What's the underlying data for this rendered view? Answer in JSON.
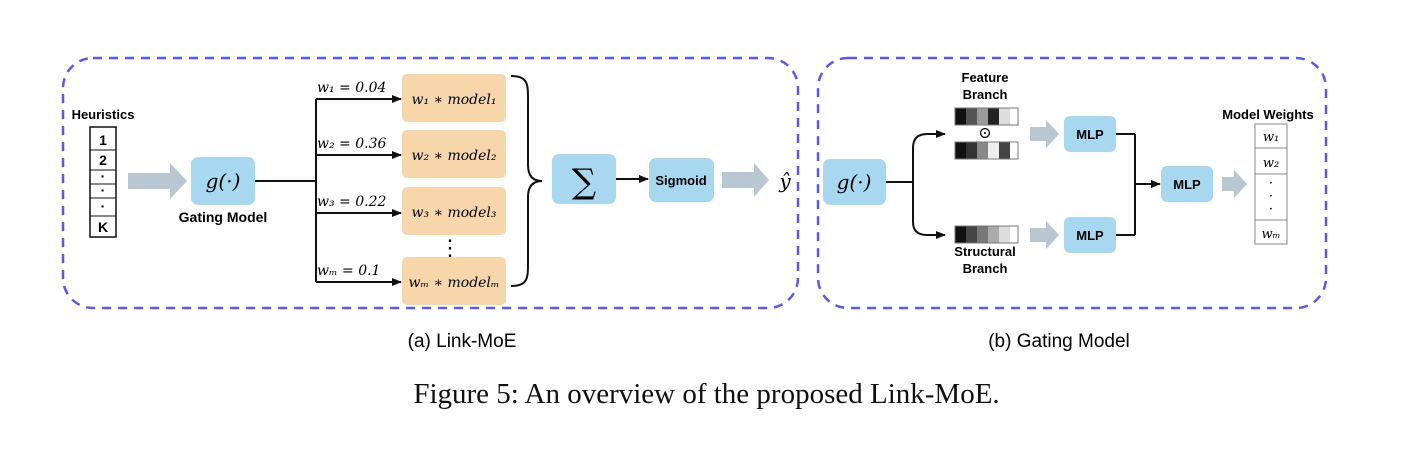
{
  "panel_a": {
    "caption": "(a) Link-MoE",
    "heuristics_title": "Heuristics",
    "heuristics_items": [
      "1",
      "2",
      "·",
      "·",
      "·",
      "K"
    ],
    "gate_node": "g(·)",
    "gate_label": "Gating Model",
    "experts": [
      {
        "weight_label": "w₁ = 0.04",
        "box_label": "w₁ ∗ model₁"
      },
      {
        "weight_label": "w₂ = 0.36",
        "box_label": "w₂ ∗ model₂"
      },
      {
        "weight_label": "w₃ = 0.22",
        "box_label": "w₃ ∗ model₃"
      },
      {
        "weight_label": "wₘ = 0.1",
        "box_label": "wₘ ∗ modelₘ"
      }
    ],
    "vdots": "⋮",
    "sum_symbol": "∑",
    "sigmoid_label": "Sigmoid",
    "output_label": "ŷ"
  },
  "panel_b": {
    "caption": "(b) Gating Model",
    "gate_node": "g(·)",
    "feature_branch_line1": "Feature",
    "feature_branch_line2": "Branch",
    "hadamard_symbol": "⊙",
    "structural_branch_line1": "Structural",
    "structural_branch_line2": "Branch",
    "mlp_top": "MLP",
    "mlp_bottom": "MLP",
    "mlp_final": "MLP",
    "weights_title": "Model Weights",
    "weights_items": [
      "w₁",
      "w₂",
      "·",
      "·",
      "·",
      "wₘ"
    ]
  },
  "figure_caption": "Figure 5: An overview of the proposed Link-MoE.",
  "colors": {
    "panel_border": "#5b5bea",
    "blue_box": "#a8d8f0",
    "orange_box": "#f7d6ac",
    "gray_arrow": "#b9c7d2"
  }
}
